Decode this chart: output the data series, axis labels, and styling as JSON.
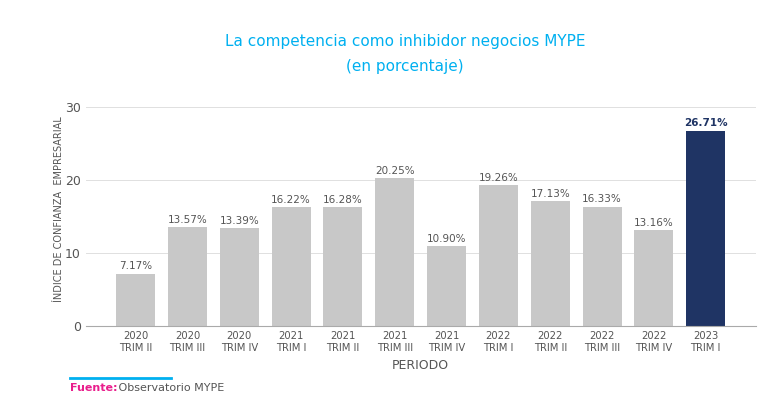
{
  "categories": [
    "2020\nTRIM II",
    "2020\nTRIM III",
    "2020\nTRIM IV",
    "2021\nTRIM I",
    "2021\nTRIM II",
    "2021\nTRIM III",
    "2021\nTRIM IV",
    "2022\nTRIM I",
    "2022\nTRIM II",
    "2022\nTRIM III",
    "2022\nTRIM IV",
    "2023\nTRIM I"
  ],
  "values": [
    7.17,
    13.57,
    13.39,
    16.22,
    16.28,
    20.25,
    10.9,
    19.26,
    17.13,
    16.33,
    13.16,
    26.71
  ],
  "bar_colors": [
    "#c8c8c8",
    "#c8c8c8",
    "#c8c8c8",
    "#c8c8c8",
    "#c8c8c8",
    "#c8c8c8",
    "#c8c8c8",
    "#c8c8c8",
    "#c8c8c8",
    "#c8c8c8",
    "#c8c8c8",
    "#1f3464"
  ],
  "title_line1": "La competencia como inhibidor negocios MYPE",
  "title_line2": "(en porcentaje)",
  "title_color": "#00b0f0",
  "title_fontsize": 11,
  "xlabel": "PERIODO",
  "ylabel": "ÍNDICE DE CONFIANZA  EMPRESARIAL",
  "ylim": [
    0,
    32
  ],
  "yticks": [
    0,
    10,
    20,
    30
  ],
  "background_color": "#ffffff",
  "bar_label_color_default": "#555555",
  "bar_label_color_last": "#1f3464",
  "fuente_label": "Fuente:",
  "fuente_text": " Observatorio MYPE",
  "fuente_label_color": "#e91e8c",
  "fuente_text_color": "#555555",
  "line_color": "#00b0f0",
  "grid_color": "#e0e0e0",
  "spine_color": "#aaaaaa"
}
